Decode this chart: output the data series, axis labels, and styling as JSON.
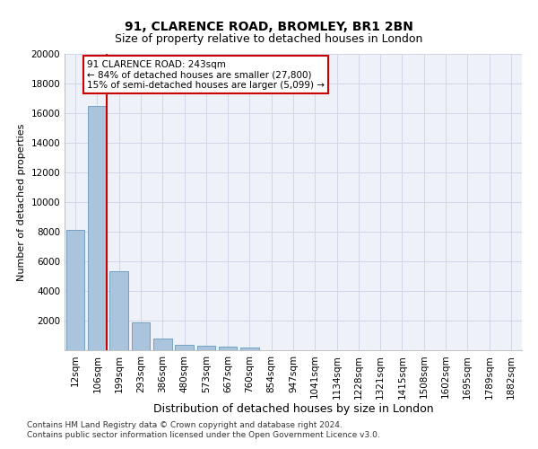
{
  "title": "91, CLARENCE ROAD, BROMLEY, BR1 2BN",
  "subtitle": "Size of property relative to detached houses in London",
  "xlabel": "Distribution of detached houses by size in London",
  "ylabel": "Number of detached properties",
  "categories": [
    "12sqm",
    "106sqm",
    "199sqm",
    "293sqm",
    "386sqm",
    "480sqm",
    "573sqm",
    "667sqm",
    "760sqm",
    "854sqm",
    "947sqm",
    "1041sqm",
    "1134sqm",
    "1228sqm",
    "1321sqm",
    "1415sqm",
    "1508sqm",
    "1602sqm",
    "1695sqm",
    "1789sqm",
    "1882sqm"
  ],
  "values": [
    8100,
    16500,
    5350,
    1850,
    780,
    340,
    275,
    225,
    200,
    0,
    0,
    0,
    0,
    0,
    0,
    0,
    0,
    0,
    0,
    0,
    0
  ],
  "bar_color": "#aac4de",
  "bar_edge_color": "#6699bb",
  "vline_color": "#cc0000",
  "annotation_text": "91 CLARENCE ROAD: 243sqm\n← 84% of detached houses are smaller (27,800)\n15% of semi-detached houses are larger (5,099) →",
  "annotation_box_color": "#ffffff",
  "annotation_box_edge": "#cc0000",
  "ylim": [
    0,
    20000
  ],
  "yticks": [
    0,
    2000,
    4000,
    6000,
    8000,
    10000,
    12000,
    14000,
    16000,
    18000,
    20000
  ],
  "bg_color": "#eef2f8",
  "grid_color": "#d0d8e8",
  "footer_line1": "Contains HM Land Registry data © Crown copyright and database right 2024.",
  "footer_line2": "Contains public sector information licensed under the Open Government Licence v3.0.",
  "title_fontsize": 10,
  "subtitle_fontsize": 9,
  "ylabel_fontsize": 8,
  "xlabel_fontsize": 9,
  "tick_fontsize": 7.5,
  "footer_fontsize": 6.5
}
